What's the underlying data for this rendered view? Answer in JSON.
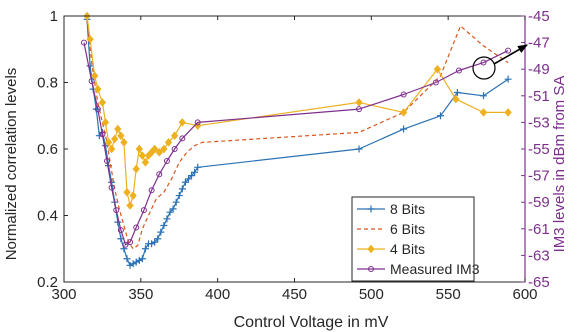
{
  "chart_data": {
    "type": "line",
    "xlabel": "Control Voltage in mV",
    "ylabel": "Normalized correlation levels",
    "y2label": "IM3 levels in dBm from SA",
    "xlim": [
      300,
      600
    ],
    "ylim": [
      0.2,
      1.0
    ],
    "y2lim": [
      -65,
      -45
    ],
    "xticks": [
      "300",
      "350",
      "400",
      "450",
      "500",
      "550",
      "600"
    ],
    "yticks": [
      "0.2",
      "0.4",
      "0.6",
      "0.8",
      "1"
    ],
    "y2ticks": [
      "-45",
      "-47",
      "-49",
      "-51",
      "-53",
      "-55",
      "-57",
      "-59",
      "-61",
      "-63",
      "-65"
    ],
    "legend_position": "bottom-right",
    "grid": false,
    "colors": {
      "8 Bits": "#2a72b5",
      "6 Bits": "#d9541a",
      "4 Bits": "#edb120",
      "Measured IM3": "#7e2f8e",
      "axis_right": "#7e2f8e",
      "arrow": "#000000"
    },
    "series": [
      {
        "name": "8 Bits",
        "axis": "left",
        "style": "solid",
        "marker": "plus",
        "x": [
          315,
          317,
          319,
          321,
          323,
          325,
          327,
          329,
          331,
          333,
          335,
          337,
          339,
          341,
          343,
          345,
          347,
          349,
          351,
          353,
          355,
          357,
          359,
          361,
          363,
          365,
          367,
          369,
          371,
          373,
          375,
          377,
          379,
          381,
          383,
          385,
          387,
          492,
          521,
          545,
          556,
          573,
          589
        ],
        "y": [
          0.99,
          0.85,
          0.78,
          0.72,
          0.64,
          0.65,
          0.61,
          0.55,
          0.5,
          0.44,
          0.38,
          0.33,
          0.3,
          0.27,
          0.25,
          0.255,
          0.26,
          0.265,
          0.27,
          0.3,
          0.315,
          0.315,
          0.32,
          0.33,
          0.35,
          0.37,
          0.39,
          0.41,
          0.42,
          0.44,
          0.46,
          0.48,
          0.5,
          0.51,
          0.52,
          0.53,
          0.545,
          0.6,
          0.66,
          0.7,
          0.77,
          0.76,
          0.81
        ]
      },
      {
        "name": "6 Bits",
        "axis": "left",
        "style": "dashed",
        "marker": "none",
        "x": [
          315,
          318,
          320,
          322,
          325,
          328,
          330,
          333,
          336,
          339,
          342,
          345,
          348,
          351,
          355,
          360,
          365,
          370,
          375,
          380,
          385,
          390,
          492,
          521,
          545,
          558,
          573,
          589
        ],
        "y": [
          0.99,
          0.86,
          0.8,
          0.74,
          0.68,
          0.62,
          0.56,
          0.48,
          0.42,
          0.37,
          0.32,
          0.3,
          0.31,
          0.36,
          0.4,
          0.45,
          0.47,
          0.51,
          0.56,
          0.59,
          0.61,
          0.62,
          0.65,
          0.71,
          0.82,
          0.97,
          0.91,
          0.86
        ]
      },
      {
        "name": "4 Bits",
        "axis": "left",
        "style": "solid",
        "marker": "diamond",
        "x": [
          315,
          317,
          320,
          322,
          325,
          327,
          329,
          331,
          333,
          335,
          337,
          339,
          341,
          343,
          345,
          347,
          349,
          351,
          353,
          355,
          357,
          359,
          362,
          365,
          368,
          372,
          377,
          387,
          492,
          521,
          543,
          555,
          573,
          589
        ],
        "y": [
          1.0,
          0.93,
          0.82,
          0.78,
          0.74,
          0.68,
          0.62,
          0.6,
          0.63,
          0.66,
          0.64,
          0.62,
          0.47,
          0.43,
          0.46,
          0.54,
          0.6,
          0.58,
          0.56,
          0.58,
          0.59,
          0.6,
          0.59,
          0.6,
          0.62,
          0.64,
          0.68,
          0.67,
          0.74,
          0.71,
          0.84,
          0.75,
          0.71,
          0.71
        ]
      },
      {
        "name": "Measured IM3",
        "axis": "right",
        "style": "solid",
        "marker": "circle",
        "x": [
          313,
          318,
          322,
          325,
          328,
          331,
          334,
          337,
          340,
          343,
          347,
          352,
          357,
          362,
          367,
          372,
          377,
          387,
          492,
          521,
          542,
          557,
          573,
          589
        ],
        "y": [
          -47.0,
          -49.9,
          -52.0,
          -53.9,
          -55.9,
          -57.9,
          -59.6,
          -61.1,
          -62.2,
          -62.0,
          -60.9,
          -59.6,
          -58.1,
          -56.9,
          -55.9,
          -55.0,
          -54.2,
          -53.0,
          -52.0,
          -50.9,
          -50.0,
          -49.1,
          -48.5,
          -47.6
        ]
      }
    ]
  }
}
